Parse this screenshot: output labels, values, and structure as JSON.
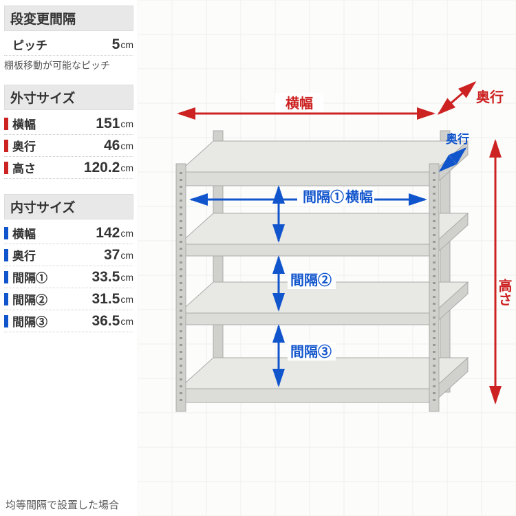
{
  "sections": {
    "pitch": {
      "title": "段変更間隔",
      "row": {
        "label": "ピッチ",
        "value": "5",
        "unit": "cm",
        "mark": "none"
      },
      "note": "棚板移動が可能なピッチ"
    },
    "outer": {
      "title": "外寸サイズ",
      "rows": [
        {
          "label": "横幅",
          "value": "151",
          "unit": "cm",
          "mark": "red"
        },
        {
          "label": "奥行",
          "value": "46",
          "unit": "cm",
          "mark": "red"
        },
        {
          "label": "高さ",
          "value": "120.2",
          "unit": "cm",
          "mark": "red"
        }
      ]
    },
    "inner": {
      "title": "内寸サイズ",
      "rows": [
        {
          "label": "横幅",
          "value": "142",
          "unit": "cm",
          "mark": "blue"
        },
        {
          "label": "奥行",
          "value": "37",
          "unit": "cm",
          "mark": "blue"
        },
        {
          "label": "間隔①",
          "value": "33.5",
          "unit": "cm",
          "mark": "blue"
        },
        {
          "label": "間隔②",
          "value": "31.5",
          "unit": "cm",
          "mark": "blue"
        },
        {
          "label": "間隔③",
          "value": "36.5",
          "unit": "cm",
          "mark": "blue"
        }
      ]
    }
  },
  "footer": "均等間隔で設置した場合",
  "diagram": {
    "labels": {
      "width_outer": "横幅",
      "depth_outer": "奥行",
      "depth_inner": "奥行",
      "width_inner": "横幅",
      "height": "高さ",
      "gap1": "間隔①",
      "gap2": "間隔②",
      "gap3": "間隔③"
    },
    "colors": {
      "red": "#cc2222",
      "blue": "#1155cc",
      "shelf_light": "#ececea",
      "shelf_dark": "#d8d8d4",
      "post": "#cfcfca",
      "grid": "#eeeeee"
    }
  }
}
